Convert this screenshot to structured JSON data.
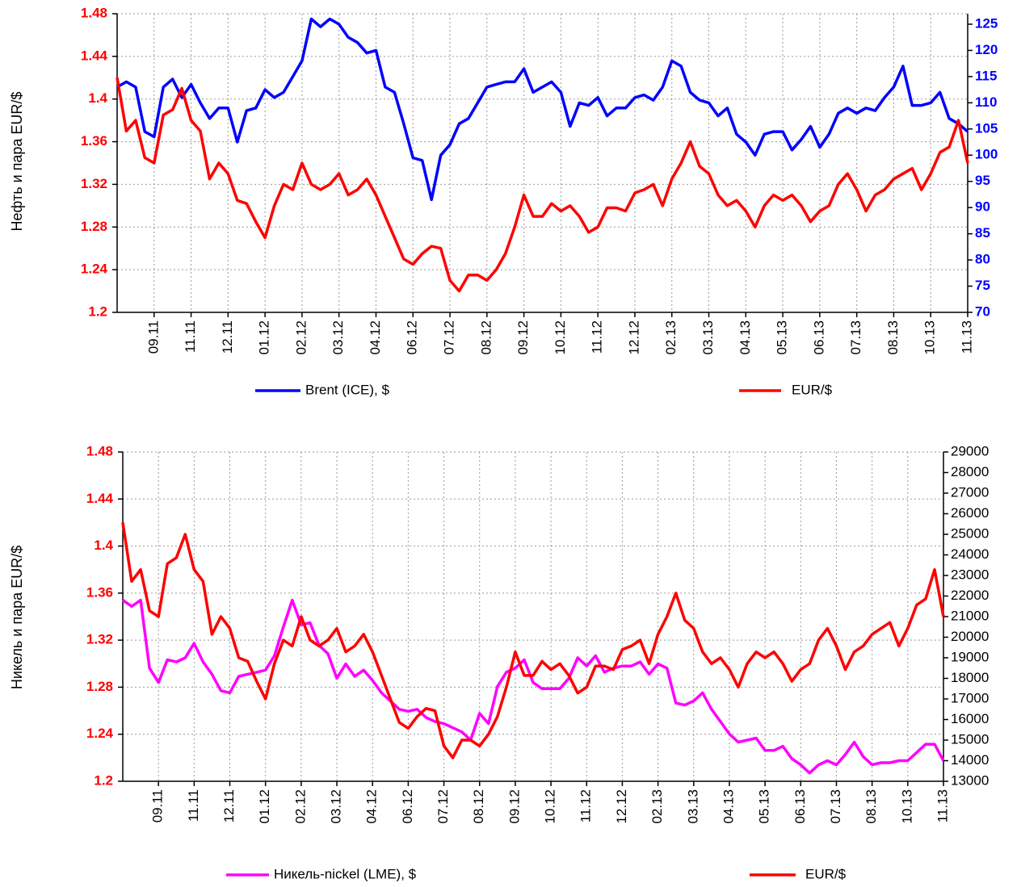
{
  "chart_data": [
    {
      "type": "line",
      "ylabel": "Нефть и пара EUR/$",
      "categories": [
        null,
        null,
        null,
        null,
        "09.11",
        null,
        null,
        null,
        "11.11",
        null,
        null,
        null,
        "12.11",
        null,
        null,
        null,
        "01.12",
        null,
        null,
        null,
        "02.12",
        null,
        null,
        null,
        "03.12",
        null,
        null,
        null,
        "04.12",
        null,
        null,
        null,
        "06.12",
        null,
        null,
        null,
        "07.12",
        null,
        null,
        null,
        "08.12",
        null,
        null,
        null,
        "09.12",
        null,
        null,
        null,
        "10.12",
        null,
        null,
        null,
        "11.12",
        null,
        null,
        null,
        "12.12",
        null,
        null,
        null,
        "02.13",
        null,
        null,
        null,
        "03.13",
        null,
        null,
        null,
        "04.13",
        null,
        null,
        null,
        "05.13",
        null,
        null,
        null,
        "06.13",
        null,
        null,
        null,
        "07.13",
        null,
        null,
        null,
        "08.13",
        null,
        null,
        null,
        "10.13",
        null,
        null,
        null,
        "11.13"
      ],
      "series": [
        {
          "name": "Brent (ICE), $",
          "color": "#0000ff",
          "axis": "y2",
          "values": [
            113,
            114,
            113,
            104.5,
            103.5,
            113,
            114.5,
            111,
            113.5,
            110,
            107,
            109,
            109,
            102.5,
            108.5,
            109,
            112.5,
            111,
            112,
            115,
            118,
            126,
            124.5,
            126,
            125,
            122.5,
            121.5,
            119.5,
            120,
            113,
            112,
            106,
            99.5,
            99,
            91.5,
            100,
            102,
            106,
            107,
            110,
            113,
            113.5,
            114,
            114,
            116.5,
            112,
            113,
            114,
            112,
            105.5,
            110,
            109.5,
            111,
            107.5,
            109,
            109,
            111,
            111.5,
            110.5,
            113,
            118,
            117,
            112,
            110.5,
            110,
            107.5,
            109,
            104,
            102.5,
            100,
            104,
            104.5,
            104.5,
            101,
            103,
            105.5,
            101.5,
            104,
            108,
            109,
            108,
            109,
            108.5,
            111,
            113,
            117,
            109.5,
            109.5,
            110,
            112,
            107,
            106,
            104.5
          ]
        },
        {
          "name": "EUR/$",
          "color": "#ff0000",
          "values": [
            1.42,
            1.37,
            1.38,
            1.345,
            1.34,
            1.385,
            1.39,
            1.41,
            1.38,
            1.37,
            1.325,
            1.34,
            1.33,
            1.305,
            1.302,
            1.285,
            1.27,
            1.3,
            1.32,
            1.315,
            1.34,
            1.32,
            1.315,
            1.32,
            1.33,
            1.31,
            1.315,
            1.325,
            1.31,
            1.29,
            1.27,
            1.25,
            1.245,
            1.255,
            1.262,
            1.26,
            1.23,
            1.22,
            1.235,
            1.235,
            1.23,
            1.24,
            1.255,
            1.28,
            1.31,
            1.29,
            1.29,
            1.302,
            1.295,
            1.3,
            1.29,
            1.275,
            1.28,
            1.298,
            1.298,
            1.295,
            1.312,
            1.315,
            1.32,
            1.3,
            1.325,
            1.34,
            1.36,
            1.337,
            1.33,
            1.31,
            1.3,
            1.305,
            1.295,
            1.28,
            1.3,
            1.31,
            1.305,
            1.31,
            1.3,
            1.285,
            1.295,
            1.3,
            1.32,
            1.33,
            1.315,
            1.295,
            1.31,
            1.315,
            1.325,
            1.33,
            1.335,
            1.315,
            1.33,
            1.35,
            1.355,
            1.38,
            1.34
          ]
        }
      ],
      "ylim": [
        1.2,
        1.48
      ],
      "yticks": [
        1.2,
        1.24,
        1.28,
        1.32,
        1.36,
        1.4,
        1.44,
        1.48
      ],
      "y2lim": [
        70,
        127
      ],
      "y2ticks": [
        70,
        75,
        80,
        85,
        90,
        95,
        100,
        105,
        110,
        115,
        120,
        125
      ],
      "grid": true
    },
    {
      "type": "line",
      "ylabel": "Никель и пара EUR/$",
      "categories": [
        null,
        null,
        null,
        null,
        "09.11",
        null,
        null,
        null,
        "11.11",
        null,
        null,
        null,
        "12.11",
        null,
        null,
        null,
        "01.12",
        null,
        null,
        null,
        "02.12",
        null,
        null,
        null,
        "03.12",
        null,
        null,
        null,
        "04.12",
        null,
        null,
        null,
        "06.12",
        null,
        null,
        null,
        "07.12",
        null,
        null,
        null,
        "08.12",
        null,
        null,
        null,
        "09.12",
        null,
        null,
        null,
        "10.12",
        null,
        null,
        null,
        "11.12",
        null,
        null,
        null,
        "12.12",
        null,
        null,
        null,
        "02.13",
        null,
        null,
        null,
        "03.13",
        null,
        null,
        null,
        "04.13",
        null,
        null,
        null,
        "05.13",
        null,
        null,
        null,
        "06.13",
        null,
        null,
        null,
        "07.13",
        null,
        null,
        null,
        "08.13",
        null,
        null,
        null,
        "10.13",
        null,
        null,
        null,
        "11.13"
      ],
      "series": [
        {
          "name": "Никель-nickel (LME), $",
          "color": "#ff00ff",
          "axis": "y2",
          "values": [
            21800,
            21500,
            21800,
            18500,
            17800,
            18900,
            18800,
            19000,
            19700,
            18800,
            18200,
            17400,
            17300,
            18100,
            18200,
            18300,
            18400,
            19100,
            20500,
            21800,
            20600,
            20700,
            19600,
            19200,
            18000,
            18700,
            18100,
            18400,
            17900,
            17300,
            16900,
            16500,
            16400,
            16500,
            16100,
            15900,
            15800,
            15600,
            15400,
            15000,
            16300,
            15800,
            17600,
            18300,
            18500,
            18900,
            17800,
            17500,
            17500,
            17500,
            18000,
            19000,
            18600,
            19100,
            18300,
            18500,
            18600,
            18600,
            18800,
            18200,
            18700,
            18500,
            16800,
            16700,
            16900,
            17300,
            16500,
            15900,
            15300,
            14900,
            15000,
            15100,
            14500,
            14500,
            14700,
            14100,
            13800,
            13400,
            13800,
            14000,
            13800,
            14300,
            14900,
            14200,
            13800,
            13900,
            13900,
            14000,
            14000,
            14400,
            14800,
            14800,
            14000
          ]
        },
        {
          "name": "EUR/$",
          "color": "#ff0000",
          "values": [
            1.42,
            1.37,
            1.38,
            1.345,
            1.34,
            1.385,
            1.39,
            1.41,
            1.38,
            1.37,
            1.325,
            1.34,
            1.33,
            1.305,
            1.302,
            1.285,
            1.27,
            1.3,
            1.32,
            1.315,
            1.34,
            1.32,
            1.315,
            1.32,
            1.33,
            1.31,
            1.315,
            1.325,
            1.31,
            1.29,
            1.27,
            1.25,
            1.245,
            1.255,
            1.262,
            1.26,
            1.23,
            1.22,
            1.235,
            1.235,
            1.23,
            1.24,
            1.255,
            1.28,
            1.31,
            1.29,
            1.29,
            1.302,
            1.295,
            1.3,
            1.29,
            1.275,
            1.28,
            1.298,
            1.298,
            1.295,
            1.312,
            1.315,
            1.32,
            1.3,
            1.325,
            1.34,
            1.36,
            1.337,
            1.33,
            1.31,
            1.3,
            1.305,
            1.295,
            1.28,
            1.3,
            1.31,
            1.305,
            1.31,
            1.3,
            1.285,
            1.295,
            1.3,
            1.32,
            1.33,
            1.315,
            1.295,
            1.31,
            1.315,
            1.325,
            1.33,
            1.335,
            1.315,
            1.33,
            1.35,
            1.355,
            1.38,
            1.34
          ]
        }
      ],
      "ylim": [
        1.2,
        1.48
      ],
      "yticks": [
        1.2,
        1.24,
        1.28,
        1.32,
        1.36,
        1.4,
        1.44,
        1.48
      ],
      "y2lim": [
        13000,
        29000
      ],
      "y2ticks": [
        13000,
        14000,
        15000,
        16000,
        17000,
        18000,
        19000,
        20000,
        21000,
        22000,
        23000,
        24000,
        25000,
        26000,
        27000,
        28000,
        29000
      ],
      "grid": true
    }
  ]
}
